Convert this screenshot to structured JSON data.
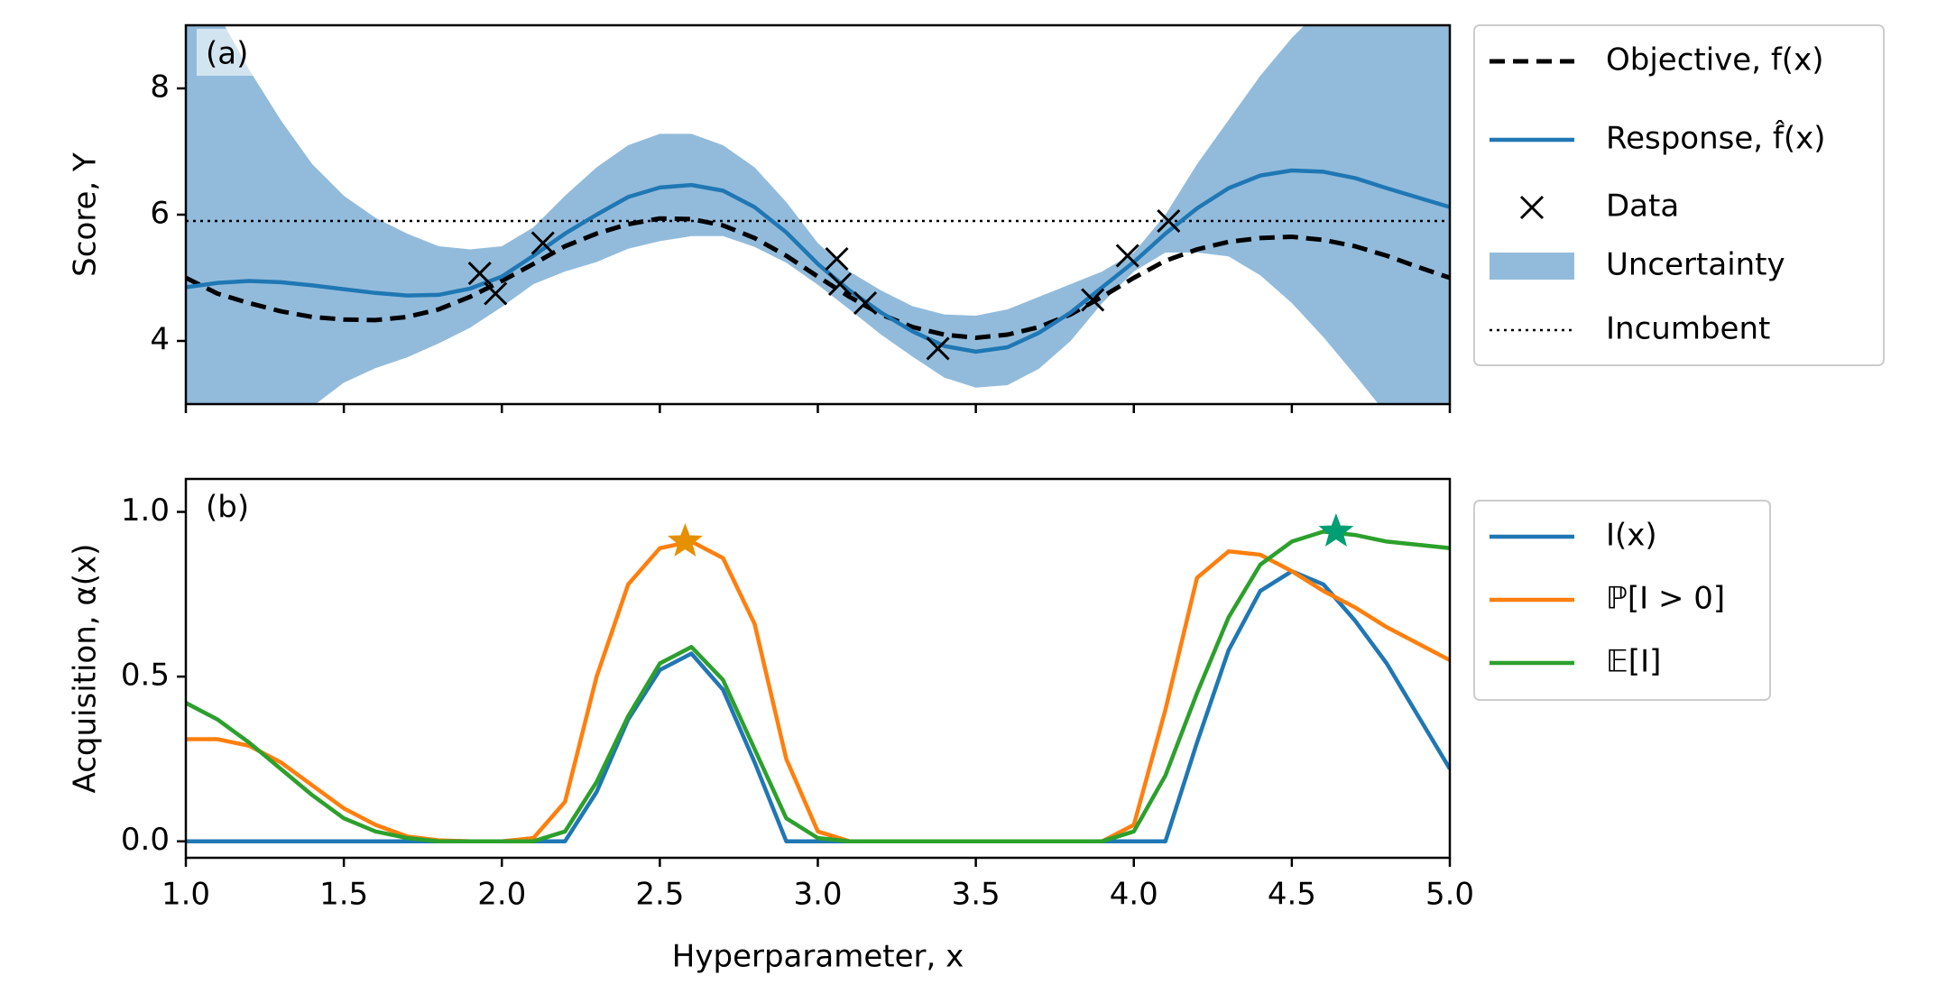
{
  "chart_data": [
    {
      "type": "line",
      "label": "(a)",
      "ylabel": "Score, Y",
      "xlim": [
        1,
        5
      ],
      "ylim": [
        3,
        9
      ],
      "yticks": [
        4,
        6,
        8
      ],
      "x": [
        1.0,
        1.1,
        1.2,
        1.3,
        1.4,
        1.5,
        1.6,
        1.7,
        1.8,
        1.9,
        2.0,
        2.1,
        2.2,
        2.3,
        2.4,
        2.5,
        2.6,
        2.7,
        2.8,
        2.9,
        3.0,
        3.1,
        3.2,
        3.3,
        3.4,
        3.5,
        3.6,
        3.7,
        3.8,
        3.9,
        4.0,
        4.1,
        4.2,
        4.3,
        4.4,
        4.5,
        4.6,
        4.7,
        4.8,
        4.9,
        5.0
      ],
      "series": [
        {
          "name": "Objective, f(x)",
          "color": "#000000",
          "dashed": true,
          "values": [
            5.0,
            4.75,
            4.6,
            4.47,
            4.38,
            4.34,
            4.33,
            4.38,
            4.5,
            4.7,
            4.95,
            5.22,
            5.5,
            5.7,
            5.85,
            5.94,
            5.93,
            5.83,
            5.63,
            5.35,
            5.02,
            4.7,
            4.42,
            4.22,
            4.1,
            4.05,
            4.1,
            4.22,
            4.42,
            4.7,
            5.0,
            5.27,
            5.45,
            5.57,
            5.63,
            5.65,
            5.6,
            5.5,
            5.35,
            5.17,
            5.0
          ]
        },
        {
          "name": "Response, f̂(x)",
          "color": "#1f77b4",
          "dashed": false,
          "values": [
            4.85,
            4.92,
            4.95,
            4.93,
            4.88,
            4.82,
            4.76,
            4.72,
            4.73,
            4.83,
            5.02,
            5.35,
            5.7,
            6.0,
            6.28,
            6.43,
            6.47,
            6.38,
            6.12,
            5.72,
            5.22,
            4.8,
            4.45,
            4.15,
            3.92,
            3.83,
            3.9,
            4.13,
            4.45,
            4.85,
            5.25,
            5.7,
            6.1,
            6.42,
            6.62,
            6.7,
            6.68,
            6.58,
            6.42,
            6.27,
            6.12
          ]
        }
      ],
      "scatter": {
        "name": "Data",
        "color": "#000000",
        "x": [
          1.93,
          1.98,
          2.13,
          3.06,
          3.07,
          3.15,
          3.38,
          3.87,
          3.98,
          4.11
        ],
        "y": [
          5.07,
          4.75,
          5.55,
          5.3,
          4.9,
          4.6,
          3.88,
          4.65,
          5.35,
          5.9
        ]
      },
      "band": {
        "name": "Uncertainty",
        "color": "#92bbdb",
        "upper": [
          10,
          9.2,
          8.3,
          7.5,
          6.8,
          6.3,
          5.95,
          5.7,
          5.5,
          5.45,
          5.5,
          5.8,
          6.3,
          6.75,
          7.1,
          7.28,
          7.28,
          7.1,
          6.75,
          6.2,
          5.55,
          5.1,
          4.8,
          4.55,
          4.42,
          4.4,
          4.5,
          4.7,
          4.9,
          5.1,
          5.4,
          6.0,
          6.8,
          7.5,
          8.2,
          8.8,
          9.3,
          9.7,
          10,
          10.2,
          10.3
        ],
        "lower": [
          -0.3,
          0.64,
          1.6,
          2.36,
          2.96,
          3.34,
          3.57,
          3.74,
          3.96,
          4.21,
          4.54,
          4.9,
          5.1,
          5.25,
          5.46,
          5.58,
          5.66,
          5.66,
          5.49,
          5.24,
          4.89,
          4.5,
          4.1,
          3.75,
          3.42,
          3.26,
          3.3,
          3.56,
          4.0,
          4.6,
          5.1,
          5.4,
          5.4,
          5.34,
          5.04,
          4.6,
          4.06,
          3.46,
          2.84,
          2.34,
          1.94
        ]
      },
      "incumbent": {
        "name": "Incumbent",
        "value": 5.9,
        "color": "#000000"
      },
      "legend": "outside upper right"
    },
    {
      "type": "line",
      "label": "(b)",
      "xlabel": "Hyperparameter, x",
      "ylabel": "Acquisition, α(x)",
      "xlim": [
        1,
        5
      ],
      "ylim": [
        -0.05,
        1.1
      ],
      "xticks": [
        {
          "value": 1,
          "label": "1.0"
        },
        1.5,
        {
          "value": 2,
          "label": "2.0"
        },
        2.5,
        {
          "value": 3,
          "label": "3.0"
        },
        3.5,
        {
          "value": 4,
          "label": "4.0"
        },
        4.5,
        {
          "value": 5,
          "label": "5.0"
        }
      ],
      "yticks": [
        {
          "value": 0,
          "label": "0.0"
        },
        0.5,
        {
          "value": 1,
          "label": "1.0"
        }
      ],
      "x": [
        1.0,
        1.1,
        1.2,
        1.3,
        1.4,
        1.5,
        1.6,
        1.7,
        1.8,
        1.9,
        2.0,
        2.1,
        2.2,
        2.3,
        2.4,
        2.5,
        2.6,
        2.7,
        2.8,
        2.9,
        3.0,
        3.1,
        3.2,
        3.3,
        3.4,
        3.5,
        3.6,
        3.7,
        3.8,
        3.9,
        4.0,
        4.1,
        4.2,
        4.3,
        4.4,
        4.5,
        4.6,
        4.7,
        4.8,
        4.9,
        5.0
      ],
      "series": [
        {
          "name": "I(x)",
          "color": "#1f77b4",
          "values": [
            0,
            0,
            0,
            0,
            0,
            0,
            0,
            0,
            0,
            0,
            0,
            0,
            0,
            0.15,
            0.37,
            0.52,
            0.57,
            0.46,
            0.24,
            0,
            0,
            0,
            0,
            0,
            0,
            0,
            0,
            0,
            0,
            0,
            0,
            0,
            0.3,
            0.58,
            0.76,
            0.82,
            0.78,
            0.67,
            0.54,
            0.38,
            0.22
          ]
        },
        {
          "name": "ℙ[I > 0]",
          "color": "#ff7f0e",
          "values": [
            0.31,
            0.31,
            0.29,
            0.24,
            0.17,
            0.1,
            0.05,
            0.015,
            0.003,
            0,
            0,
            0.01,
            0.12,
            0.5,
            0.78,
            0.89,
            0.91,
            0.86,
            0.66,
            0.25,
            0.03,
            0,
            0,
            0,
            0,
            0,
            0,
            0,
            0,
            0,
            0.05,
            0.4,
            0.8,
            0.88,
            0.87,
            0.82,
            0.76,
            0.71,
            0.65,
            0.6,
            0.55
          ]
        },
        {
          "name": "𝔼[I]",
          "color": "#2ca02c",
          "values": [
            0.42,
            0.37,
            0.3,
            0.22,
            0.14,
            0.07,
            0.03,
            0.01,
            0,
            0,
            0,
            0,
            0.03,
            0.18,
            0.38,
            0.54,
            0.59,
            0.49,
            0.28,
            0.07,
            0.01,
            0,
            0,
            0,
            0,
            0,
            0,
            0,
            0,
            0,
            0.03,
            0.2,
            0.45,
            0.68,
            0.84,
            0.91,
            0.94,
            0.93,
            0.91,
            0.9,
            0.89
          ]
        }
      ],
      "maxima": [
        {
          "x": 2.58,
          "y": 0.91,
          "color": "#e69000"
        },
        {
          "x": 4.64,
          "y": 0.94,
          "color": "#009e73"
        }
      ],
      "legend": "outside upper right"
    }
  ]
}
